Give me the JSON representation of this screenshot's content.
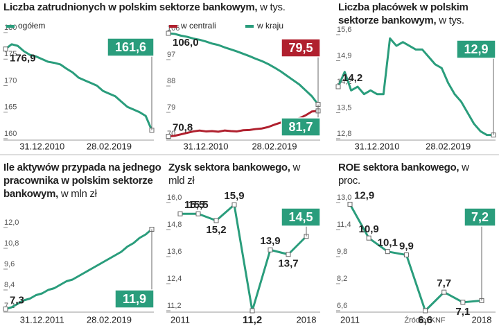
{
  "chart_data": [
    {
      "type": "line",
      "title": "Liczba zatrudnionych w polskim sektorze bankowym,",
      "subtitle": "w tys.",
      "categories": [
        null,
        null,
        null,
        null,
        null,
        null,
        "31.12.2010",
        null,
        null,
        null,
        null,
        null,
        null,
        null,
        null,
        null,
        null,
        "28.02.2019",
        null,
        null,
        null,
        null,
        null,
        null,
        null
      ],
      "series": [
        {
          "name": "ogółem",
          "color": "#2a9d7c",
          "values": [
            176.9,
            177.8,
            177.5,
            176.5,
            175.8,
            175.5,
            175.0,
            174.5,
            174.3,
            174.0,
            173.2,
            172.5,
            171.5,
            171.0,
            170.5,
            170.0,
            169.0,
            168.5,
            168.0,
            167.0,
            166.0,
            165.5,
            165.0,
            164.3,
            161.6
          ],
          "value_labels": [
            "176,9",
            null,
            null,
            null,
            null,
            null,
            null,
            null,
            null,
            null,
            null,
            null,
            null,
            null,
            null,
            null,
            null,
            null,
            null,
            null,
            null,
            null,
            null,
            null,
            "161,6"
          ]
        }
      ],
      "ylim": [
        160,
        180
      ],
      "yticks": [
        160,
        165,
        170,
        175,
        180
      ]
    },
    {
      "type": "line",
      "categories": [
        null,
        null,
        null,
        null,
        null,
        null,
        "31.12.2010",
        null,
        null,
        null,
        null,
        null,
        null,
        null,
        null,
        null,
        null,
        "28.02.2019",
        null,
        null,
        null,
        null,
        null,
        null,
        null
      ],
      "series": [
        {
          "name": "w centrali",
          "color": "#b0202e",
          "values": [
            70.8,
            71.0,
            71.5,
            72.0,
            72.5,
            72.8,
            72.5,
            72.6,
            72.4,
            72.8,
            72.6,
            72.5,
            72.9,
            73.0,
            73.3,
            73.5,
            74.0,
            74.8,
            75.5,
            76.0,
            76.5,
            77.0,
            78.0,
            79.3,
            79.5
          ],
          "value_labels": [
            "70,8",
            null,
            null,
            null,
            null,
            null,
            null,
            null,
            null,
            null,
            null,
            null,
            null,
            null,
            null,
            null,
            null,
            null,
            null,
            null,
            null,
            null,
            null,
            null,
            "79,5"
          ]
        },
        {
          "name": "w kraju",
          "color": "#2a9d7c",
          "values": [
            106.0,
            105.8,
            105.2,
            104.8,
            104.2,
            103.8,
            103.2,
            102.5,
            102.0,
            101.2,
            100.5,
            99.8,
            99.0,
            98.2,
            97.3,
            96.5,
            95.5,
            94.3,
            93.0,
            91.5,
            90.0,
            88.5,
            86.5,
            84.5,
            81.7
          ],
          "value_labels": [
            "106,0",
            null,
            null,
            null,
            null,
            null,
            null,
            null,
            null,
            null,
            null,
            null,
            null,
            null,
            null,
            null,
            null,
            null,
            null,
            null,
            null,
            null,
            null,
            null,
            "81,7"
          ]
        }
      ],
      "ylim": [
        70,
        106
      ],
      "yticks": [
        70,
        79,
        88,
        97,
        106
      ]
    },
    {
      "type": "line",
      "title": "Liczba placówek w polskim sektorze bankowym,",
      "subtitle": "w tys.",
      "categories": [
        null,
        null,
        null,
        null,
        null,
        null,
        "31.12.2010",
        null,
        null,
        null,
        null,
        null,
        null,
        null,
        null,
        null,
        null,
        "28.02.2019",
        null,
        null,
        null,
        null,
        null,
        null,
        null
      ],
      "series": [
        {
          "color": "#2a9d7c",
          "values": [
            14.2,
            14.6,
            14.1,
            14.2,
            14.0,
            14.1,
            14.0,
            14.0,
            15.5,
            15.3,
            15.4,
            15.3,
            15.2,
            15.2,
            15.0,
            14.8,
            14.7,
            14.3,
            14.0,
            13.8,
            13.5,
            13.2,
            13.0,
            12.9,
            12.9
          ],
          "value_labels": [
            "14,2",
            null,
            null,
            null,
            null,
            null,
            null,
            null,
            null,
            null,
            null,
            null,
            null,
            null,
            null,
            null,
            null,
            null,
            null,
            null,
            null,
            null,
            null,
            null,
            "12,9"
          ]
        }
      ],
      "ylim": [
        12.8,
        15.6
      ],
      "yticks": [
        {
          "value": 12.8,
          "label": "12,8"
        },
        {
          "value": 13.5,
          "label": "13,5"
        },
        {
          "value": 14.2,
          "label": "14,2"
        },
        {
          "value": 14.9,
          "label": "14,9"
        },
        {
          "value": 15.6,
          "label": "15,6"
        }
      ]
    },
    {
      "type": "line",
      "title": "Ile aktywów przypada na jednego pracownika w polskim sektorze bankowym,",
      "subtitle": "w mln zł",
      "categories": [
        null,
        null,
        null,
        null,
        null,
        null,
        "31.12.2011",
        null,
        null,
        null,
        null,
        null,
        null,
        null,
        null,
        null,
        null,
        "28.02.2019",
        null,
        null,
        null,
        null,
        null,
        null,
        null
      ],
      "series": [
        {
          "color": "#2a9d7c",
          "values": [
            7.3,
            7.4,
            7.6,
            7.8,
            7.9,
            8.1,
            8.2,
            8.4,
            8.5,
            8.7,
            8.9,
            9.0,
            9.2,
            9.4,
            9.6,
            9.8,
            10.0,
            10.2,
            10.4,
            10.6,
            10.9,
            11.1,
            11.4,
            11.6,
            11.9
          ],
          "value_labels": [
            "7,3",
            null,
            null,
            null,
            null,
            null,
            null,
            null,
            null,
            null,
            null,
            null,
            null,
            null,
            null,
            null,
            null,
            null,
            null,
            null,
            null,
            null,
            null,
            null,
            "11,9"
          ]
        }
      ],
      "ylim": [
        7.2,
        12.0
      ],
      "yticks": [
        {
          "value": 7.2,
          "label": "7,2"
        },
        {
          "value": 8.4,
          "label": "8,4"
        },
        {
          "value": 9.6,
          "label": "9,6"
        },
        {
          "value": 10.8,
          "label": "10,8"
        },
        {
          "value": 12.0,
          "label": "12,0"
        }
      ]
    },
    {
      "type": "line",
      "title": "Zysk sektora bankowego,",
      "subtitle": "w mld zł",
      "categories": [
        "2011",
        null,
        null,
        null,
        null,
        null,
        null,
        "2018"
      ],
      "series": [
        {
          "color": "#2a9d7c",
          "values": [
            15.5,
            15.5,
            15.2,
            15.9,
            11.2,
            13.9,
            13.7,
            14.5
          ],
          "value_labels": [
            "15,5",
            "15,5",
            "15,2",
            "15,9",
            "11,2",
            "13,9",
            "13,7",
            "14,5"
          ]
        }
      ],
      "ylim": [
        11.2,
        16.0
      ],
      "yticks": [
        {
          "value": 11.2,
          "label": "11,2"
        },
        {
          "value": 12.4,
          "label": "12,4"
        },
        {
          "value": 13.6,
          "label": "13,6"
        },
        {
          "value": 14.8,
          "label": "14,8"
        },
        {
          "value": 16.0,
          "label": "16,0"
        }
      ]
    },
    {
      "type": "line",
      "title": "ROE sektora bankowego,",
      "subtitle": "w proc.",
      "source": "Źródło: KNF",
      "categories": [
        "2011",
        null,
        null,
        null,
        null,
        null,
        null,
        "2018"
      ],
      "series": [
        {
          "color": "#2a9d7c",
          "values": [
            12.9,
            10.9,
            10.1,
            9.9,
            6.6,
            7.7,
            7.1,
            7.2
          ],
          "value_labels": [
            "12,9",
            "10,9",
            "10,1",
            "9,9",
            "6,6",
            "7,7",
            "7,1",
            "7,2"
          ]
        }
      ],
      "ylim": [
        6.6,
        13.0
      ],
      "yticks": [
        {
          "value": 6.6,
          "label": "6,6"
        },
        {
          "value": 8.2,
          "label": "8,2"
        },
        {
          "value": 9.8,
          "label": "9,8"
        },
        {
          "value": 11.4,
          "label": "11,4"
        },
        {
          "value": 13.0,
          "label": "13,0"
        }
      ]
    }
  ]
}
